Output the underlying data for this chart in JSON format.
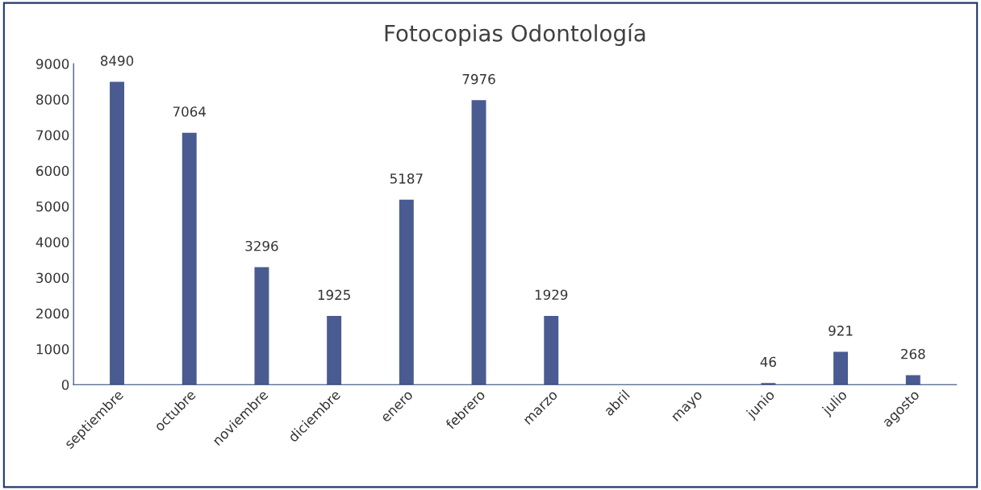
{
  "chart_data": {
    "type": "bar",
    "title": "Fotocopias Odontología",
    "categories": [
      "septiembre",
      "octubre",
      "noviembre",
      "diciembre",
      "enero",
      "febrero",
      "marzo",
      "abril",
      "mayo",
      "junio",
      "julio",
      "agosto"
    ],
    "values": [
      8490,
      7064,
      3296,
      1925,
      5187,
      7976,
      1929,
      0,
      0,
      46,
      921,
      268
    ],
    "value_labels": [
      "8490",
      "7064",
      "3296",
      "1925",
      "5187",
      "7976",
      "1929",
      null,
      null,
      "46",
      "921",
      "268"
    ],
    "color": "#4a5b92",
    "ylim": [
      0,
      9000
    ],
    "yticks": [
      0,
      1000,
      2000,
      3000,
      4000,
      5000,
      6000,
      7000,
      8000,
      9000
    ],
    "grid": false,
    "legend": false
  }
}
